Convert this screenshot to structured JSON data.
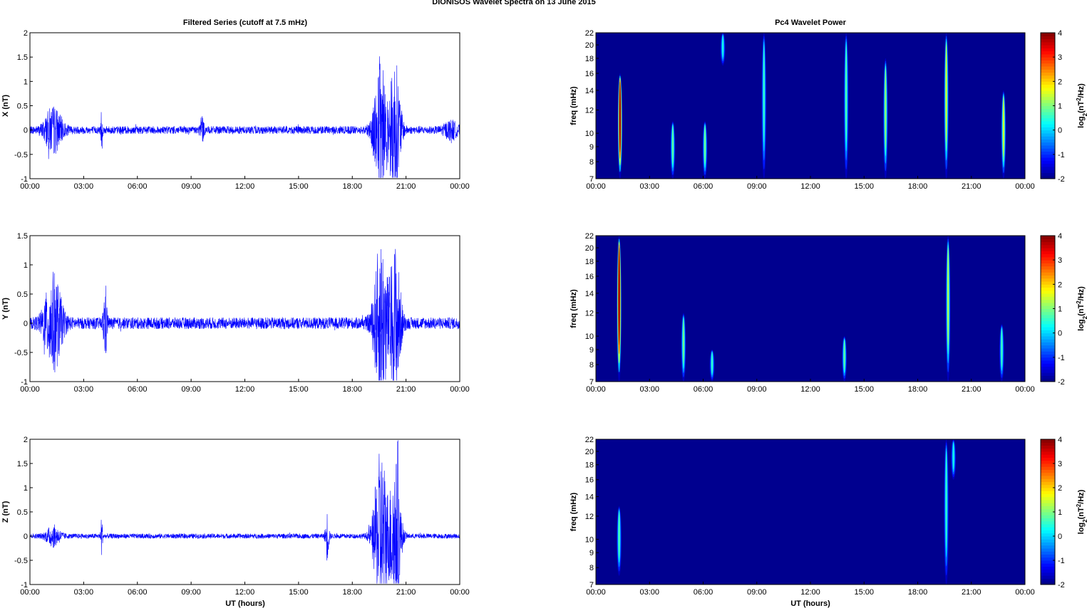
{
  "figure": {
    "title": "DIONISOS Wavelet Spectra on 13 June      2015",
    "left_title": "Filtered Series (cutoff at 7.5 mHz)",
    "right_title": "Pc4 Wavelet Power",
    "xlabel": "UT (hours)",
    "time_ticks": [
      "00:00",
      "03:00",
      "06:00",
      "09:00",
      "12:00",
      "15:00",
      "18:00",
      "21:00",
      "00:00"
    ],
    "colors": {
      "series_line": "#0000ff",
      "spectrogram_bg": "#00008f",
      "frame": "#000000"
    }
  },
  "chart_data": [
    {
      "type": "line",
      "name": "X",
      "ylabel": "X (nT)",
      "x_range_hours": [
        0,
        24
      ],
      "ylim": [
        -1,
        2
      ],
      "yticks": [
        "2",
        "1.5",
        "1",
        "0.5",
        "0",
        "-0.5",
        "-1"
      ],
      "ytick_values": [
        2,
        1.5,
        1,
        0.5,
        0,
        -0.5,
        -1
      ],
      "baseline_amplitude": 0.08,
      "bursts": [
        {
          "t": 1.3,
          "width": 0.5,
          "amp": 0.45
        },
        {
          "t": 4.0,
          "width": 0.05,
          "amp": 0.45
        },
        {
          "t": 9.6,
          "width": 0.1,
          "amp": 0.3
        },
        {
          "t": 19.6,
          "width": 0.4,
          "amp": 1.5
        },
        {
          "t": 20.4,
          "width": 0.3,
          "amp": 1.4
        },
        {
          "t": 23.5,
          "width": 0.4,
          "amp": 0.15
        }
      ]
    },
    {
      "type": "line",
      "name": "Y",
      "ylabel": "Y (nT)",
      "x_range_hours": [
        0,
        24
      ],
      "ylim": [
        -1,
        1.5
      ],
      "yticks": [
        "1.5",
        "1",
        "0.5",
        "0",
        "-0.5",
        "-1"
      ],
      "ytick_values": [
        1.5,
        1,
        0.5,
        0,
        -0.5,
        -1
      ],
      "baseline_amplitude": 0.1,
      "bursts": [
        {
          "t": 1.3,
          "width": 0.5,
          "amp": 0.8
        },
        {
          "t": 4.2,
          "width": 0.1,
          "amp": 0.65
        },
        {
          "t": 19.6,
          "width": 0.4,
          "amp": 1.4
        },
        {
          "t": 20.4,
          "width": 0.3,
          "amp": 1.3
        }
      ]
    },
    {
      "type": "line",
      "name": "Z",
      "ylabel": "Z (nT)",
      "x_range_hours": [
        0,
        24
      ],
      "ylim": [
        -1,
        2
      ],
      "yticks": [
        "2",
        "1.5",
        "1",
        "0.5",
        "0",
        "-0.5",
        "-1"
      ],
      "ytick_values": [
        2,
        1.5,
        1,
        0.5,
        0,
        -0.5,
        -1
      ],
      "baseline_amplitude": 0.05,
      "bursts": [
        {
          "t": 1.3,
          "width": 0.4,
          "amp": 0.2
        },
        {
          "t": 4.0,
          "width": 0.05,
          "amp": 0.45
        },
        {
          "t": 16.6,
          "width": 0.1,
          "amp": 0.5
        },
        {
          "t": 19.6,
          "width": 0.4,
          "amp": 1.8
        },
        {
          "t": 20.4,
          "width": 0.3,
          "amp": 1.6
        }
      ]
    },
    {
      "type": "heatmap",
      "name": "X power",
      "ylabel": "freq (mHz)",
      "x_range_hours": [
        0,
        24
      ],
      "ylim_mHz": [
        7,
        22
      ],
      "freq_ticks": [
        "22",
        "20",
        "18",
        "16",
        "14",
        "12",
        "10",
        "9",
        "8",
        "7"
      ],
      "freq_tick_values": [
        22,
        20,
        18,
        16,
        14,
        12,
        10,
        9,
        8,
        7
      ],
      "colorbar": {
        "label": "log2(nT^2/Hz)",
        "ticks": [
          "4",
          "3",
          "2",
          "1",
          "0",
          "-1",
          "-2"
        ],
        "range": [
          -2,
          4
        ]
      },
      "streaks": [
        {
          "t": 1.35,
          "f_low": 7,
          "f_high": 16,
          "peak": 3.8
        },
        {
          "t": 4.3,
          "f_low": 7,
          "f_high": 11,
          "peak": 0.5
        },
        {
          "t": 6.1,
          "f_low": 7,
          "f_high": 11,
          "peak": 0.6
        },
        {
          "t": 7.1,
          "f_low": 17,
          "f_high": 22,
          "peak": 0.0
        },
        {
          "t": 9.4,
          "f_low": 7,
          "f_high": 22,
          "peak": 0.2
        },
        {
          "t": 14.0,
          "f_low": 7,
          "f_high": 22,
          "peak": 0.4
        },
        {
          "t": 16.2,
          "f_low": 7,
          "f_high": 18,
          "peak": 0.8
        },
        {
          "t": 19.6,
          "f_low": 7,
          "f_high": 22,
          "peak": 1.2
        },
        {
          "t": 22.8,
          "f_low": 7,
          "f_high": 14,
          "peak": 1.2
        }
      ]
    },
    {
      "type": "heatmap",
      "name": "Y power",
      "ylabel": "freq (mHz)",
      "x_range_hours": [
        0,
        24
      ],
      "ylim_mHz": [
        7,
        22
      ],
      "freq_ticks": [
        "22",
        "20",
        "18",
        "16",
        "14",
        "12",
        "10",
        "9",
        "8",
        "7"
      ],
      "freq_tick_values": [
        22,
        20,
        18,
        16,
        14,
        12,
        10,
        9,
        8,
        7
      ],
      "colorbar": {
        "label": "log2(nT^2/Hz)",
        "ticks": [
          "4",
          "3",
          "2",
          "1",
          "0",
          "-1",
          "-2"
        ],
        "range": [
          -2,
          4
        ]
      },
      "streaks": [
        {
          "t": 1.3,
          "f_low": 7,
          "f_high": 22,
          "peak": 4.0
        },
        {
          "t": 4.9,
          "f_low": 7,
          "f_high": 12,
          "peak": 0.6
        },
        {
          "t": 6.5,
          "f_low": 7,
          "f_high": 9,
          "peak": 0.2
        },
        {
          "t": 13.9,
          "f_low": 7,
          "f_high": 10,
          "peak": 0.5
        },
        {
          "t": 19.7,
          "f_low": 7,
          "f_high": 22,
          "peak": 1.0
        },
        {
          "t": 22.7,
          "f_low": 7,
          "f_high": 11,
          "peak": 0.3
        }
      ]
    },
    {
      "type": "heatmap",
      "name": "Z power",
      "ylabel": "freq (mHz)",
      "x_range_hours": [
        0,
        24
      ],
      "ylim_mHz": [
        7,
        22
      ],
      "freq_ticks": [
        "22",
        "20",
        "18",
        "16",
        "14",
        "12",
        "10",
        "9",
        "8",
        "7"
      ],
      "freq_tick_values": [
        22,
        20,
        18,
        16,
        14,
        12,
        10,
        9,
        8,
        7
      ],
      "colorbar": {
        "label": "log2(nT^2/Hz)",
        "ticks": [
          "4",
          "3",
          "2",
          "1",
          "0",
          "-1",
          "-2"
        ],
        "range": [
          -2,
          4
        ]
      },
      "streaks": [
        {
          "t": 1.3,
          "f_low": 7.5,
          "f_high": 13,
          "peak": 0.4
        },
        {
          "t": 19.6,
          "f_low": 7,
          "f_high": 22,
          "peak": 0.2
        },
        {
          "t": 20.0,
          "f_low": 16,
          "f_high": 22,
          "peak": 0.0
        }
      ]
    }
  ]
}
